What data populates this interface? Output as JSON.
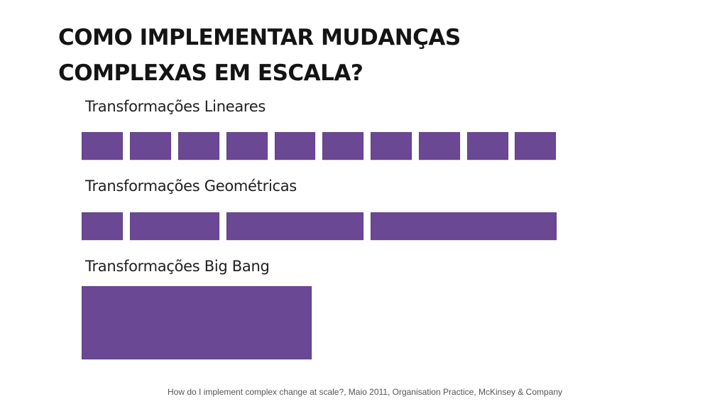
{
  "slide": {
    "title_line1": "COMO IMPLEMENTAR MUDANÇAS",
    "title_line2": "COMPLEXAS EM ESCALA?",
    "sections": [
      {
        "label": "Transformações Lineares"
      },
      {
        "label": "Transformações Geométricas"
      },
      {
        "label": "Transformações Big Bang"
      }
    ],
    "source": "How do I implement complex change at scale?, Maio 2011, Organisation Practice, McKinsey & Company"
  },
  "colors": {
    "block": "#6a4893",
    "title": "#141414",
    "label": "#1e1e1e",
    "source": "#555555"
  }
}
